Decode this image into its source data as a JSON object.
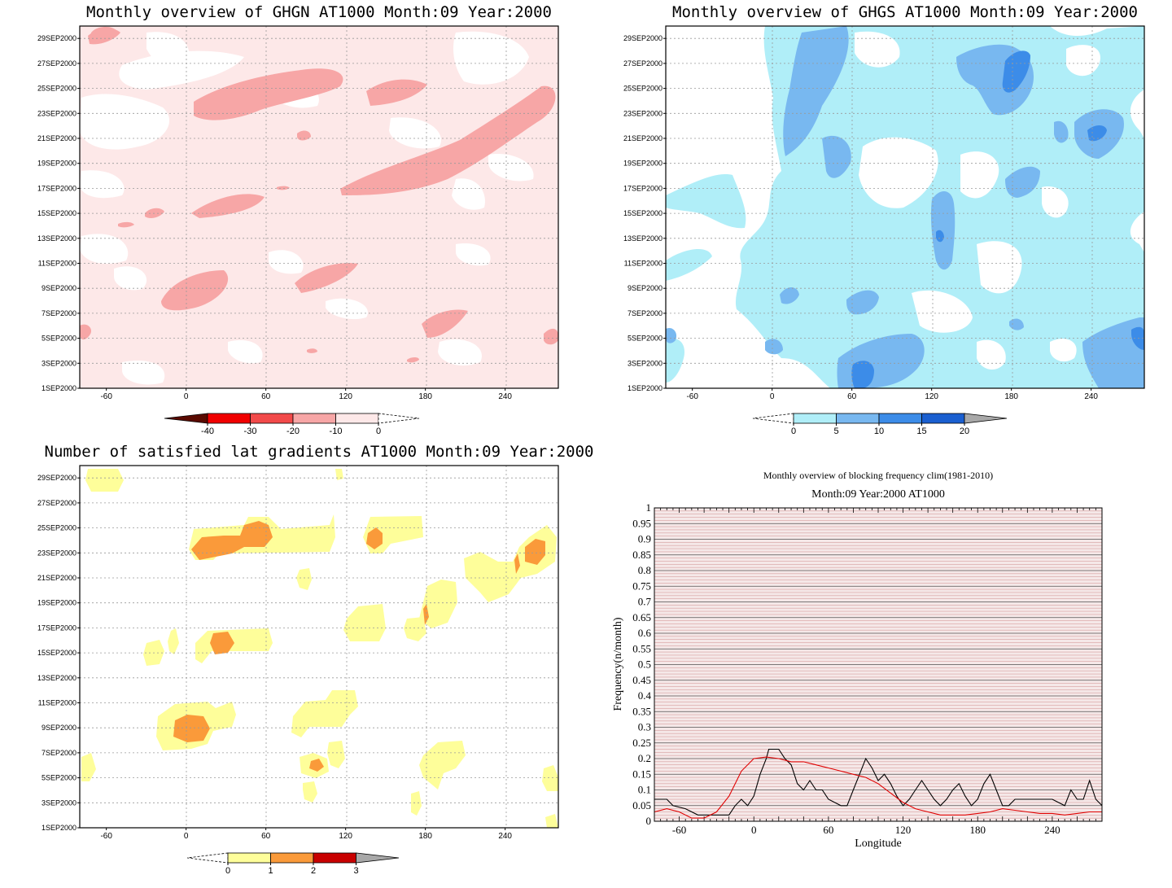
{
  "panels": {
    "ghgn": {
      "title": "Monthly overview of GHGN AT1000 Month:09 Year:2000",
      "colorbar": {
        "labels": [
          "-40",
          "-30",
          "-20",
          "-10",
          "0"
        ],
        "colors": [
          "#5a0a00",
          "#f00000",
          "#f24a4a",
          "#f7a6a6",
          "#fde8e8"
        ]
      }
    },
    "ghgs": {
      "title": "Monthly overview of GHGS AT1000 Month:09 Year:2000",
      "colorbar": {
        "labels": [
          "0",
          "5",
          "10",
          "15",
          "20"
        ],
        "colors": [
          "#b0eef8",
          "#78b8f0",
          "#3c8ce8",
          "#1a5fd0",
          "#a8a8a8"
        ]
      }
    },
    "lat": {
      "title": "Number of satisfied lat gradients AT1000 Month:09 Year:2000",
      "colorbar": {
        "labels": [
          "0",
          "1",
          "2",
          "3"
        ],
        "colors": [
          "#fefe9a",
          "#fa9a3a",
          "#c80000",
          "#a8a8a8"
        ]
      }
    },
    "freq": {
      "title": "Monthly overview of blocking frequency clim(1981-2010)",
      "subtitle": "Month:09 Year:2000  AT1000",
      "xlabel": "Longitude",
      "ylabel": "Frequency(n/month)"
    }
  },
  "shared_axes": {
    "date_ticks": [
      "1SEP2000",
      "3SEP2000",
      "5SEP2000",
      "7SEP2000",
      "9SEP2000",
      "11SEP2000",
      "13SEP2000",
      "15SEP2000",
      "17SEP2000",
      "19SEP2000",
      "21SEP2000",
      "23SEP2000",
      "25SEP2000",
      "27SEP2000",
      "29SEP2000"
    ],
    "lon_ticks": [
      "-60",
      "0",
      "60",
      "120",
      "180",
      "240"
    ]
  },
  "chart_data": [
    {
      "type": "heatmap",
      "title": "Monthly overview of GHGN AT1000 Month:09 Year:2000",
      "x_range": [
        -80,
        280
      ],
      "y_range": [
        "1SEP2000",
        "30SEP2000"
      ],
      "levels": [
        -40,
        -30,
        -20,
        -10,
        0
      ],
      "background_level": "-10 to 0"
    },
    {
      "type": "heatmap",
      "title": "Monthly overview of GHGS AT1000 Month:09 Year:2000",
      "x_range": [
        -80,
        280
      ],
      "y_range": [
        "1SEP2000",
        "30SEP2000"
      ],
      "levels": [
        0,
        5,
        10,
        15,
        20
      ]
    },
    {
      "type": "heatmap",
      "title": "Number of satisfied lat gradients AT1000 Month:09 Year:2000",
      "x_range": [
        -80,
        280
      ],
      "y_range": [
        "1SEP2000",
        "30SEP2000"
      ],
      "levels": [
        0,
        1,
        2,
        3
      ]
    },
    {
      "type": "line",
      "title": "Monthly overview of blocking frequency clim(1981-2010)",
      "subtitle": "Month:09 Year:2000  AT1000",
      "xlabel": "Longitude",
      "ylabel": "Frequency(n/month)",
      "xlim": [
        -80,
        280
      ],
      "ylim": [
        0,
        1
      ],
      "x_ticks": [
        -60,
        0,
        60,
        120,
        180,
        240
      ],
      "y_ticks": [
        0,
        0.05,
        0.1,
        0.15,
        0.2,
        0.25,
        0.3,
        0.35,
        0.4,
        0.45,
        0.5,
        0.55,
        0.6,
        0.65,
        0.7,
        0.75,
        0.8,
        0.85,
        0.9,
        0.95,
        1
      ],
      "grid": true,
      "series": [
        {
          "color": "#000000",
          "x": [
            -80,
            -70,
            -65,
            -55,
            -45,
            -35,
            -20,
            -15,
            -10,
            -5,
            0,
            5,
            10,
            12,
            20,
            25,
            30,
            35,
            40,
            45,
            50,
            55,
            60,
            70,
            75,
            80,
            85,
            90,
            95,
            100,
            105,
            110,
            115,
            120,
            125,
            130,
            135,
            140,
            145,
            150,
            155,
            160,
            165,
            170,
            175,
            180,
            185,
            190,
            195,
            200,
            205,
            210,
            220,
            230,
            240,
            250,
            255,
            260,
            265,
            270,
            275,
            280
          ],
          "values": [
            0.07,
            0.07,
            0.05,
            0.04,
            0.02,
            0.02,
            0.02,
            0.05,
            0.07,
            0.05,
            0.08,
            0.15,
            0.2,
            0.23,
            0.23,
            0.2,
            0.18,
            0.12,
            0.1,
            0.13,
            0.1,
            0.1,
            0.07,
            0.05,
            0.05,
            0.1,
            0.15,
            0.2,
            0.17,
            0.13,
            0.15,
            0.12,
            0.08,
            0.05,
            0.07,
            0.1,
            0.13,
            0.1,
            0.07,
            0.05,
            0.07,
            0.1,
            0.12,
            0.08,
            0.05,
            0.07,
            0.12,
            0.15,
            0.1,
            0.05,
            0.05,
            0.07,
            0.07,
            0.07,
            0.07,
            0.05,
            0.1,
            0.07,
            0.07,
            0.13,
            0.07,
            0.05
          ]
        },
        {
          "color": "#e00000",
          "x": [
            -80,
            -70,
            -60,
            -50,
            -40,
            -30,
            -20,
            -10,
            0,
            10,
            20,
            30,
            40,
            50,
            60,
            70,
            80,
            90,
            100,
            110,
            120,
            130,
            140,
            150,
            160,
            170,
            180,
            190,
            200,
            210,
            220,
            230,
            240,
            250,
            260,
            270,
            280
          ],
          "values": [
            0.03,
            0.04,
            0.03,
            0.01,
            0.01,
            0.03,
            0.08,
            0.16,
            0.2,
            0.205,
            0.2,
            0.19,
            0.19,
            0.18,
            0.17,
            0.16,
            0.15,
            0.14,
            0.12,
            0.09,
            0.06,
            0.04,
            0.03,
            0.02,
            0.02,
            0.02,
            0.025,
            0.03,
            0.04,
            0.035,
            0.03,
            0.025,
            0.025,
            0.02,
            0.025,
            0.03,
            0.03
          ]
        }
      ]
    }
  ]
}
